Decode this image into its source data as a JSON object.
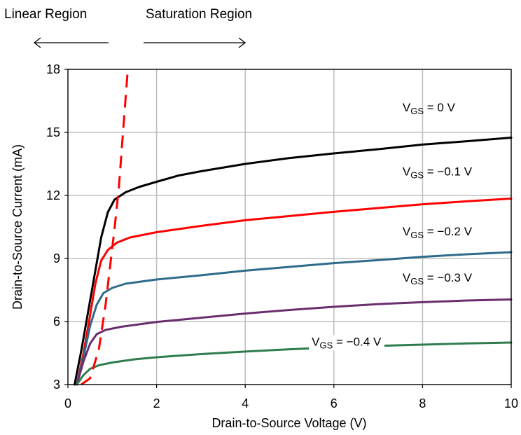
{
  "header": {
    "linear_region": "Linear Region",
    "saturation_region": "Saturation Region"
  },
  "colors": {
    "grid": "#c0c0c0",
    "axis": "#000000",
    "boundary": "#ff0000"
  },
  "chart_data": {
    "type": "line",
    "title": "",
    "xlabel": "Drain-to-Source Voltage (V)",
    "ylabel": "Drain-to-Source Current (mA)",
    "xlim": [
      0,
      10
    ],
    "ylim": [
      3,
      18
    ],
    "xticks": [
      0,
      2,
      4,
      6,
      8,
      10
    ],
    "yticks": [
      3,
      6,
      9,
      12,
      15,
      18
    ],
    "grid": true,
    "series": [
      {
        "name": "V_GS = 0 V",
        "label_prefix": "V",
        "label_sub": "GS",
        "label_value": " = 0 V",
        "color": "#000000",
        "points": [
          [
            0.15,
            3.0
          ],
          [
            0.3,
            4.6
          ],
          [
            0.45,
            6.4
          ],
          [
            0.6,
            8.2
          ],
          [
            0.75,
            10.0
          ],
          [
            0.9,
            11.2
          ],
          [
            1.05,
            11.8
          ],
          [
            1.3,
            12.15
          ],
          [
            1.6,
            12.4
          ],
          [
            2.0,
            12.65
          ],
          [
            2.5,
            12.95
          ],
          [
            3.0,
            13.15
          ],
          [
            4.0,
            13.5
          ],
          [
            5.0,
            13.78
          ],
          [
            6.0,
            14.0
          ],
          [
            7.0,
            14.2
          ],
          [
            8.0,
            14.42
          ],
          [
            9.0,
            14.58
          ],
          [
            10.0,
            14.75
          ]
        ]
      },
      {
        "name": "V_GS = −0.1 V",
        "label_prefix": "V",
        "label_sub": "GS",
        "label_value": " = −0.1 V",
        "color": "#ff0000",
        "points": [
          [
            0.2,
            3.0
          ],
          [
            0.35,
            4.5
          ],
          [
            0.5,
            6.3
          ],
          [
            0.62,
            7.8
          ],
          [
            0.75,
            8.9
          ],
          [
            0.9,
            9.4
          ],
          [
            1.1,
            9.75
          ],
          [
            1.4,
            10.0
          ],
          [
            2.0,
            10.25
          ],
          [
            3.0,
            10.55
          ],
          [
            4.0,
            10.82
          ],
          [
            5.0,
            11.02
          ],
          [
            6.0,
            11.22
          ],
          [
            7.0,
            11.4
          ],
          [
            8.0,
            11.58
          ],
          [
            9.0,
            11.72
          ],
          [
            10.0,
            11.85
          ]
        ]
      },
      {
        "name": "V_GS = −0.2 V",
        "label_prefix": "V",
        "label_sub": "GS",
        "label_value": " = −0.2 V",
        "color": "#2e6b8a",
        "points": [
          [
            0.2,
            3.0
          ],
          [
            0.35,
            4.3
          ],
          [
            0.5,
            5.8
          ],
          [
            0.65,
            6.8
          ],
          [
            0.8,
            7.35
          ],
          [
            1.0,
            7.6
          ],
          [
            1.3,
            7.8
          ],
          [
            2.0,
            8.0
          ],
          [
            3.0,
            8.2
          ],
          [
            4.0,
            8.42
          ],
          [
            5.0,
            8.6
          ],
          [
            6.0,
            8.78
          ],
          [
            7.0,
            8.92
          ],
          [
            8.0,
            9.08
          ],
          [
            9.0,
            9.2
          ],
          [
            10.0,
            9.3
          ]
        ]
      },
      {
        "name": "V_GS = −0.3 V",
        "label_prefix": "V",
        "label_sub": "GS",
        "label_value": " = −0.3 V",
        "color": "#6a2e6e",
        "points": [
          [
            0.2,
            3.0
          ],
          [
            0.35,
            4.1
          ],
          [
            0.5,
            4.95
          ],
          [
            0.65,
            5.4
          ],
          [
            0.85,
            5.6
          ],
          [
            1.2,
            5.75
          ],
          [
            2.0,
            5.98
          ],
          [
            3.0,
            6.18
          ],
          [
            4.0,
            6.38
          ],
          [
            5.0,
            6.55
          ],
          [
            6.0,
            6.7
          ],
          [
            7.0,
            6.83
          ],
          [
            8.0,
            6.92
          ],
          [
            9.0,
            7.0
          ],
          [
            10.0,
            7.05
          ]
        ]
      },
      {
        "name": "V_GS = −0.4 V",
        "label_prefix": "V",
        "label_sub": "GS",
        "label_value": " = −0.4 V",
        "color": "#2e7d4f",
        "points": [
          [
            0.2,
            3.0
          ],
          [
            0.35,
            3.45
          ],
          [
            0.5,
            3.75
          ],
          [
            0.7,
            3.92
          ],
          [
            1.0,
            4.05
          ],
          [
            1.5,
            4.2
          ],
          [
            2.0,
            4.3
          ],
          [
            3.0,
            4.45
          ],
          [
            4.0,
            4.57
          ],
          [
            5.0,
            4.68
          ],
          [
            6.0,
            4.77
          ],
          [
            7.0,
            4.84
          ],
          [
            8.0,
            4.9
          ],
          [
            9.0,
            4.96
          ],
          [
            10.0,
            5.0
          ]
        ]
      }
    ],
    "boundary": {
      "name": "linear/saturation boundary",
      "style": "dashed",
      "points": [
        [
          0.3,
          3.0
        ],
        [
          0.5,
          3.3
        ],
        [
          0.7,
          4.7
        ],
        [
          0.85,
          6.8
        ],
        [
          0.95,
          8.6
        ],
        [
          1.05,
          10.4
        ],
        [
          1.15,
          12.4
        ],
        [
          1.25,
          15.2
        ],
        [
          1.35,
          18.0
        ]
      ]
    },
    "labels": [
      {
        "series": 0,
        "x": 7.55,
        "y": 16.0
      },
      {
        "series": 1,
        "x": 7.55,
        "y": 12.95
      },
      {
        "series": 2,
        "x": 7.55,
        "y": 10.1
      },
      {
        "series": 3,
        "x": 7.55,
        "y": 7.9
      },
      {
        "series": 4,
        "x": 5.5,
        "y": 4.85
      }
    ]
  }
}
